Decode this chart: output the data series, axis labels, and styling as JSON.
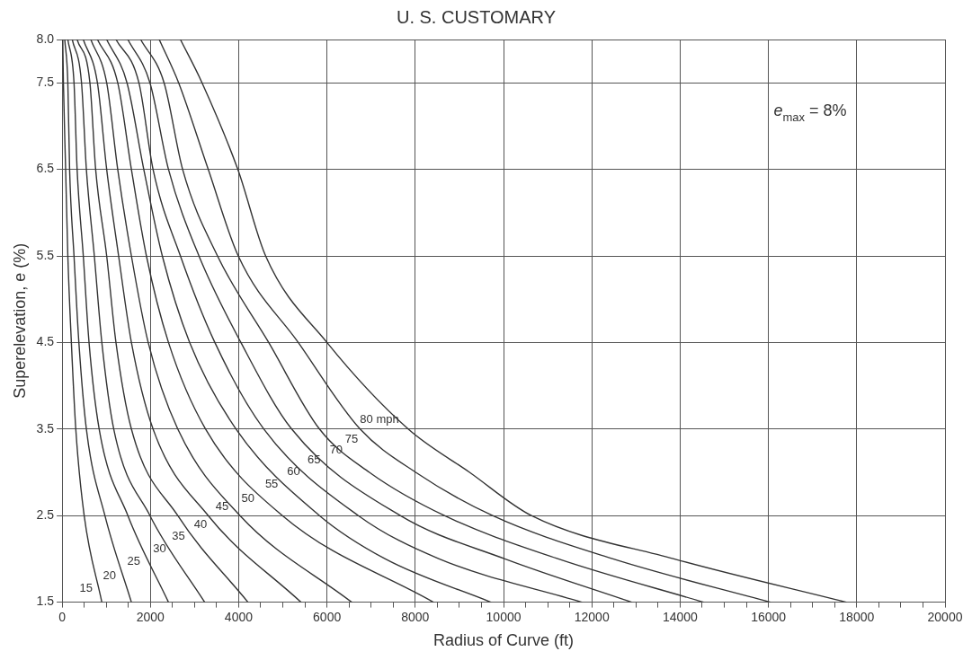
{
  "chart_data": {
    "type": "line",
    "title": "U. S. CUSTOMARY",
    "xlabel": "Radius of Curve (ft)",
    "ylabel": "Superelevation, e (%)",
    "annotations": [
      "e$_{max}$ = 8%"
    ],
    "xlim": [
      0,
      20000
    ],
    "ylim": [
      1.5,
      8
    ],
    "xticks": [
      0,
      {
        "value": 500,
        "label": null
      },
      {
        "value": 1000,
        "label": null
      },
      {
        "value": 1500,
        "label": null
      },
      2000,
      {
        "value": 2500,
        "label": null
      },
      {
        "value": 3000,
        "label": null
      },
      {
        "value": 3500,
        "label": null
      },
      4000,
      {
        "value": 4500,
        "label": null
      },
      {
        "value": 5000,
        "label": null
      },
      {
        "value": 5500,
        "label": null
      },
      6000,
      {
        "value": 6500,
        "label": null
      },
      {
        "value": 7000,
        "label": null
      },
      {
        "value": 7500,
        "label": null
      },
      8000,
      {
        "value": 8500,
        "label": null
      },
      {
        "value": 9000,
        "label": null
      },
      {
        "value": 9500,
        "label": null
      },
      10000,
      {
        "value": 10500,
        "label": null
      },
      {
        "value": 11000,
        "label": null
      },
      {
        "value": 11500,
        "label": null
      },
      12000,
      {
        "value": 12500,
        "label": null
      },
      {
        "value": 13000,
        "label": null
      },
      {
        "value": 13500,
        "label": null
      },
      14000,
      {
        "value": 14500,
        "label": null
      },
      {
        "value": 15000,
        "label": null
      },
      {
        "value": 15500,
        "label": null
      },
      16000,
      {
        "value": 16500,
        "label": null
      },
      {
        "value": 17000,
        "label": null
      },
      {
        "value": 17500,
        "label": null
      },
      18000,
      {
        "value": 18500,
        "label": null
      },
      {
        "value": 19000,
        "label": null
      },
      {
        "value": 19500,
        "label": null
      },
      20000
    ],
    "yticks": [
      1.5,
      2.5,
      3.5,
      4.5,
      5.5,
      6.5,
      7.5,
      {
        "value": 8,
        "label": "8.0"
      }
    ],
    "grid": true,
    "legend": false,
    "marker": "none",
    "line_style": "solid",
    "series": [
      {
        "name": "15",
        "color": "#333333",
        "x": [
          15,
          30,
          80,
          130,
          210,
          310,
          500,
          900
        ],
        "values": [
          8,
          7.5,
          6.5,
          5.5,
          4.5,
          3.5,
          2.5,
          1.5
        ]
      },
      {
        "name": "20",
        "color": "#333333",
        "x": [
          60,
          130,
          170,
          270,
          380,
          550,
          970,
          1570
        ],
        "values": [
          8,
          7.5,
          6.5,
          5.5,
          4.5,
          3.5,
          2.5,
          1.5
        ]
      },
      {
        "name": "25",
        "color": "#333333",
        "x": [
          130,
          270,
          340,
          480,
          610,
          840,
          1490,
          2410
        ],
        "values": [
          8,
          7.5,
          6.5,
          5.5,
          4.5,
          3.5,
          2.5,
          1.5
        ]
      },
      {
        "name": "30",
        "color": "#333333",
        "x": [
          230,
          440,
          550,
          730,
          900,
          1170,
          1990,
          3230
        ],
        "values": [
          8,
          7.5,
          6.5,
          5.5,
          4.5,
          3.5,
          2.5,
          1.5
        ]
      },
      {
        "name": "35",
        "color": "#333333",
        "x": [
          340,
          630,
          760,
          1010,
          1220,
          1570,
          2620,
          4210
        ],
        "values": [
          8,
          7.5,
          6.5,
          5.5,
          4.5,
          3.5,
          2.5,
          1.5
        ]
      },
      {
        "name": "40",
        "color": "#333333",
        "x": [
          480,
          800,
          1010,
          1280,
          1570,
          2060,
          3310,
          5410
        ],
        "values": [
          8,
          7.5,
          6.5,
          5.5,
          4.5,
          3.5,
          2.5,
          1.5
        ]
      },
      {
        "name": "45",
        "color": "#333333",
        "x": [
          650,
          1010,
          1260,
          1570,
          1950,
          2620,
          4030,
          6560
        ],
        "values": [
          8,
          7.5,
          6.5,
          5.5,
          4.5,
          3.5,
          2.5,
          1.5
        ]
      },
      {
        "name": "50",
        "color": "#333333",
        "x": [
          800,
          1260,
          1570,
          1910,
          2410,
          3250,
          4990,
          8410
        ],
        "values": [
          8,
          7.5,
          6.5,
          5.5,
          4.5,
          3.5,
          2.5,
          1.5
        ]
      },
      {
        "name": "55",
        "color": "#333333",
        "x": [
          1010,
          1470,
          1850,
          2270,
          2890,
          3940,
          5830,
          7320,
          9710
        ],
        "values": [
          8,
          7.5,
          6.5,
          5.5,
          4.5,
          3.5,
          2.5,
          2,
          1.5
        ]
      },
      {
        "name": "60",
        "color": "#333333",
        "x": [
          1220,
          1740,
          2060,
          2680,
          3460,
          4570,
          6710,
          8540,
          11770
        ],
        "values": [
          8,
          7.5,
          6.5,
          5.5,
          4.5,
          3.5,
          2.5,
          2,
          1.5
        ]
      },
      {
        "name": "65",
        "color": "#333333",
        "x": [
          1490,
          1990,
          2410,
          3100,
          4050,
          5200,
          7660,
          10030,
          12900
        ],
        "values": [
          8,
          7.5,
          6.5,
          5.5,
          4.5,
          3.5,
          2.5,
          2,
          1.5
        ]
      },
      {
        "name": "70",
        "color": "#333333",
        "x": [
          1780,
          2310,
          2730,
          3520,
          4680,
          5830,
          6960,
          8660,
          11240,
          14530
        ],
        "values": [
          8,
          7.5,
          6.5,
          5.5,
          4.5,
          3.5,
          3,
          2.5,
          2,
          1.5
        ]
      },
      {
        "name": "75",
        "color": "#333333",
        "x": [
          2200,
          2640,
          3310,
          3990,
          5350,
          6750,
          8010,
          9750,
          12480,
          16040
        ],
        "values": [
          8,
          7.5,
          6.5,
          5.5,
          4.5,
          3.5,
          3,
          2.5,
          2,
          1.5
        ]
      },
      {
        "name": "80 mph",
        "color": "#333333",
        "x": [
          2680,
          3170,
          3980,
          4610,
          6000,
          7840,
          9230,
          10630,
          13860,
          17760
        ],
        "values": [
          8,
          7.5,
          6.5,
          5.5,
          4.5,
          3.5,
          3,
          2.5,
          2,
          1.5
        ]
      }
    ]
  }
}
